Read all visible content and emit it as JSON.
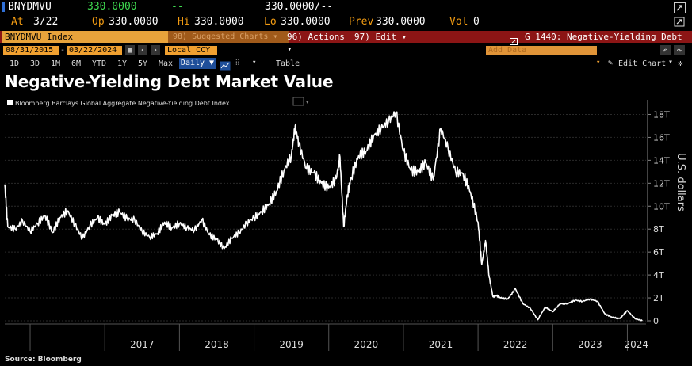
{
  "header": {
    "ticker": "BNYDMVU",
    "last": "330.0000",
    "change": "--",
    "bidask": "330.0000/--",
    "at_label": "At",
    "at_value": "3/22",
    "op_label": "Op",
    "op_value": "330.0000",
    "hi_label": "Hi",
    "hi_value": "330.0000",
    "lo_label": "Lo",
    "lo_value": "330.0000",
    "prev_label": "Prev",
    "prev_value": "330.0000",
    "vol_label": "Vol",
    "vol_value": "0"
  },
  "menubar": {
    "security": "BNYDMVU Index",
    "suggested": "98) Suggested Charts ▾",
    "actions": "96) Actions ▾",
    "edit": "97) Edit ▾",
    "function": "G 1440: Negative-Yielding Debt"
  },
  "toolbar": {
    "start_date": "08/31/2015",
    "end_date": "03/22/2024",
    "currency": "Local CCY",
    "periods": [
      "1D",
      "3D",
      "1M",
      "6M",
      "YTD",
      "1Y",
      "5Y",
      "Max"
    ],
    "frequency": "Daily ▼",
    "table": "Table",
    "add_data": "Add Data",
    "edit_chart": "Edit Chart"
  },
  "colors": {
    "accent": "#e8a33b",
    "brand_red": "#8c1515",
    "line": "#ffffff",
    "background": "#000000"
  },
  "icons": [
    "undo-icon",
    "redo-icon",
    "settings-icon",
    "export-icon",
    "chart-type-icon",
    "gear-icon"
  ],
  "chart_data": {
    "type": "line",
    "title": "Negative-Yielding Debt Market Value",
    "legend": "Bloomberg Barclays Global Aggregate Negative-Yielding Debt Index",
    "ylabel": "U.S. dollars",
    "source": "Source: Bloomberg",
    "ylim": [
      0,
      19
    ],
    "yticks": [
      0,
      2,
      4,
      6,
      8,
      10,
      12,
      14,
      16,
      18
    ],
    "ytick_labels": [
      "0",
      "2T",
      "4T",
      "6T",
      "8T",
      "10T",
      "12T",
      "14T",
      "16T",
      "18T"
    ],
    "xlim": [
      2015.66,
      2024.25
    ],
    "year_labels": [
      "2017",
      "2018",
      "2019",
      "2020",
      "2021",
      "2022",
      "2023",
      "2024"
    ],
    "year_centers": [
      2017.5,
      2018.5,
      2019.5,
      2020.5,
      2021.5,
      2022.5,
      2023.5,
      2024.12
    ],
    "x": [
      2015.66,
      2015.7,
      2015.8,
      2015.9,
      2016.0,
      2016.1,
      2016.2,
      2016.3,
      2016.4,
      2016.5,
      2016.6,
      2016.7,
      2016.8,
      2016.9,
      2017.0,
      2017.1,
      2017.2,
      2017.3,
      2017.4,
      2017.5,
      2017.6,
      2017.7,
      2017.8,
      2017.9,
      2018.0,
      2018.1,
      2018.2,
      2018.3,
      2018.4,
      2018.5,
      2018.6,
      2018.7,
      2018.8,
      2018.9,
      2019.0,
      2019.1,
      2019.2,
      2019.3,
      2019.4,
      2019.5,
      2019.55,
      2019.6,
      2019.7,
      2019.8,
      2019.9,
      2020.0,
      2020.1,
      2020.15,
      2020.2,
      2020.25,
      2020.3,
      2020.4,
      2020.5,
      2020.6,
      2020.7,
      2020.8,
      2020.9,
      2021.0,
      2021.1,
      2021.2,
      2021.3,
      2021.4,
      2021.5,
      2021.6,
      2021.7,
      2021.8,
      2021.9,
      2022.0,
      2022.05,
      2022.1,
      2022.15,
      2022.2,
      2022.25,
      2022.3,
      2022.4,
      2022.5,
      2022.6,
      2022.7,
      2022.8,
      2022.9,
      2023.0,
      2023.1,
      2023.2,
      2023.3,
      2023.4,
      2023.5,
      2023.6,
      2023.7,
      2023.8,
      2023.9,
      2024.0,
      2024.1,
      2024.2
    ],
    "y": [
      11.9,
      8.2,
      8.0,
      8.7,
      7.8,
      8.5,
      9.2,
      7.7,
      9.0,
      9.6,
      8.4,
      7.2,
      8.3,
      9.0,
      8.4,
      9.2,
      9.5,
      8.9,
      8.8,
      7.8,
      7.3,
      7.6,
      8.6,
      8.1,
      8.5,
      8.1,
      7.9,
      8.8,
      7.5,
      7.1,
      6.3,
      7.2,
      7.7,
      8.5,
      9.0,
      9.5,
      10.2,
      11.3,
      13.1,
      14.4,
      17.0,
      15.4,
      13.3,
      12.9,
      12.0,
      11.6,
      12.4,
      14.3,
      8.2,
      11.0,
      12.5,
      14.4,
      14.8,
      16.1,
      16.8,
      17.4,
      18.2,
      14.8,
      13.1,
      13.0,
      13.8,
      12.3,
      16.8,
      15.0,
      13.0,
      12.8,
      11.2,
      8.6,
      4.9,
      7.0,
      3.8,
      2.1,
      2.2,
      2.0,
      1.9,
      2.8,
      1.5,
      1.1,
      0.1,
      1.2,
      0.8,
      1.5,
      1.5,
      1.8,
      1.7,
      1.9,
      1.7,
      0.6,
      0.3,
      0.2,
      0.9,
      0.2,
      0.0
    ]
  }
}
